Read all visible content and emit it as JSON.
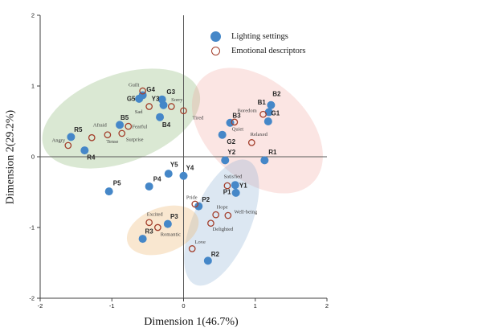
{
  "figure": {
    "background": "#ffffff"
  },
  "legend": {
    "items": [
      {
        "label": "Lighting settings",
        "marker": "filled-circle",
        "color": "#4587c8"
      },
      {
        "label": "Emotional descriptors",
        "marker": "open-circle",
        "color": "#a33f2c"
      }
    ]
  },
  "chart_data": {
    "type": "scatter",
    "title": "",
    "xlabel": "Dimension 1(46.7%)",
    "ylabel": "Dimension 2(29.2%)",
    "xlim": [
      -2,
      2
    ],
    "ylim": [
      -2,
      2
    ],
    "xticks": [
      -2,
      -1,
      0,
      1,
      2
    ],
    "yticks": [
      -2,
      -1,
      0,
      1,
      2
    ],
    "grid": false,
    "crosshair_at_origin": true,
    "legend_position": "upper-center",
    "colors": {
      "filled_point": "#4587c8",
      "open_point_stroke": "#a33f2c",
      "axis": "#404040",
      "crosshair": "#5a5a5a",
      "point_label": "#262626",
      "descriptor_label": "#3d3d3d"
    },
    "series": [
      {
        "name": "Lighting settings",
        "marker": "filled",
        "color": "#4587c8",
        "points": [
          {
            "id": "R5",
            "x": -1.57,
            "y": 0.28,
            "dx": 9,
            "dy": -9
          },
          {
            "id": "R4",
            "x": -1.38,
            "y": 0.09,
            "dx": 8,
            "dy": 9
          },
          {
            "id": "B5",
            "x": -0.89,
            "y": 0.45,
            "dx": 6,
            "dy": -9
          },
          {
            "id": "G5",
            "x": -0.62,
            "y": 0.82,
            "dx": -10,
            "dy": 0
          },
          {
            "id": "G4",
            "x": -0.57,
            "y": 0.87,
            "dx": 10,
            "dy": -7
          },
          {
            "id": "Y3",
            "x": -0.28,
            "y": 0.73,
            "dx": -10,
            "dy": -8
          },
          {
            "id": "G3",
            "x": -0.3,
            "y": 0.81,
            "dx": 11,
            "dy": -9
          },
          {
            "id": "B4",
            "x": -0.33,
            "y": 0.56,
            "dx": 8,
            "dy": 10
          },
          {
            "id": "B3",
            "x": 0.65,
            "y": 0.48,
            "dx": 8,
            "dy": -9
          },
          {
            "id": "G2",
            "x": 0.54,
            "y": 0.31,
            "dx": 11,
            "dy": 9
          },
          {
            "id": "Y2",
            "x": 0.58,
            "y": -0.05,
            "dx": 8,
            "dy": -10
          },
          {
            "id": "R1",
            "x": 1.13,
            "y": -0.05,
            "dx": 10,
            "dy": -10
          },
          {
            "id": "G1",
            "x": 1.18,
            "y": 0.5,
            "dx": 9,
            "dy": -10
          },
          {
            "id": "B1",
            "x": 1.19,
            "y": 0.63,
            "dx": -9,
            "dy": -12
          },
          {
            "id": "B2",
            "x": 1.22,
            "y": 0.73,
            "dx": 7,
            "dy": -14
          },
          {
            "id": "Y5",
            "x": -0.21,
            "y": -0.24,
            "dx": 7,
            "dy": -11
          },
          {
            "id": "Y4",
            "x": 0.0,
            "y": -0.27,
            "dx": 8,
            "dy": -10
          },
          {
            "id": "P5",
            "x": -1.04,
            "y": -0.49,
            "dx": 10,
            "dy": -10
          },
          {
            "id": "P4",
            "x": -0.48,
            "y": -0.42,
            "dx": 10,
            "dy": -9
          },
          {
            "id": "P3",
            "x": -0.22,
            "y": -0.95,
            "dx": 8,
            "dy": -9
          },
          {
            "id": "R3",
            "x": -0.57,
            "y": -1.16,
            "dx": 8,
            "dy": -9
          },
          {
            "id": "P2",
            "x": 0.21,
            "y": -0.7,
            "dx": 9,
            "dy": -8
          },
          {
            "id": "P1",
            "x": 0.73,
            "y": -0.51,
            "dx": -11,
            "dy": -1
          },
          {
            "id": "Y1",
            "x": 0.72,
            "y": -0.4,
            "dx": 10,
            "dy": 1
          },
          {
            "id": "R2",
            "x": 0.34,
            "y": -1.47,
            "dx": 9,
            "dy": -8
          }
        ]
      },
      {
        "name": "Emotional descriptors",
        "marker": "open",
        "color": "#a33f2c",
        "points": [
          {
            "id": "Angry",
            "x": -1.61,
            "y": 0.16,
            "dx": -12,
            "dy": -6
          },
          {
            "id": "Afraid",
            "x": -1.28,
            "y": 0.27,
            "dx": 10,
            "dy": -15
          },
          {
            "id": "Tense",
            "x": -1.06,
            "y": 0.31,
            "dx": 6,
            "dy": 9
          },
          {
            "id": "Surprise",
            "x": -0.86,
            "y": 0.33,
            "dx": 16,
            "dy": 8
          },
          {
            "id": "Fearful",
            "x": -0.77,
            "y": 0.43,
            "dx": 14,
            "dy": 1
          },
          {
            "id": "Sad",
            "x": -0.48,
            "y": 0.71,
            "dx": -13,
            "dy": 7
          },
          {
            "id": "Guilt",
            "x": -0.57,
            "y": 0.93,
            "dx": -11,
            "dy": -7
          },
          {
            "id": "Sorry",
            "x": -0.17,
            "y": 0.71,
            "dx": 7,
            "dy": -8
          },
          {
            "id": "Tired",
            "x": 0.0,
            "y": 0.65,
            "dx": 18,
            "dy": 9
          },
          {
            "id": "Boredom",
            "x": 1.11,
            "y": 0.6,
            "dx": -20,
            "dy": -4
          },
          {
            "id": "Quiet",
            "x": 0.71,
            "y": 0.49,
            "dx": 4,
            "dy": 9
          },
          {
            "id": "Relaxed",
            "x": 0.95,
            "y": 0.2,
            "dx": 9,
            "dy": -10
          },
          {
            "id": "Satisfied",
            "x": 0.61,
            "y": -0.41,
            "dx": 7,
            "dy": -11
          },
          {
            "id": "Pride",
            "x": 0.16,
            "y": -0.67,
            "dx": -4,
            "dy": -8
          },
          {
            "id": "Hope",
            "x": 0.45,
            "y": -0.82,
            "dx": 8,
            "dy": -9
          },
          {
            "id": "Well-being",
            "x": 0.62,
            "y": -0.83,
            "dx": 22,
            "dy": -4
          },
          {
            "id": "Delighted",
            "x": 0.38,
            "y": -0.94,
            "dx": 15,
            "dy": 8
          },
          {
            "id": "Excited",
            "x": -0.48,
            "y": -0.93,
            "dx": 7,
            "dy": -10
          },
          {
            "id": "Romantic",
            "x": -0.36,
            "y": -1.0,
            "dx": 16,
            "dy": 9
          },
          {
            "id": "Love",
            "x": 0.12,
            "y": -1.3,
            "dx": 10,
            "dy": -8
          }
        ]
      }
    ],
    "clusters": [
      {
        "name": "negative-emotions-green",
        "fill": "rgba(150,190,130,0.35)",
        "cx": -0.87,
        "cy": 0.54,
        "rx": 1.15,
        "ry": 0.62,
        "rot_deg": -20
      },
      {
        "name": "calm-emotions-pink",
        "fill": "rgba(240,160,150,0.27)",
        "cx": 1.03,
        "cy": 0.37,
        "rx": 1.06,
        "ry": 0.7,
        "rot_deg": 42
      },
      {
        "name": "positive-emotions-blue",
        "fill": "rgba(130,170,210,0.28)",
        "cx": 0.53,
        "cy": -0.93,
        "rx": 0.94,
        "ry": 0.41,
        "rot_deg": 113
      },
      {
        "name": "excited-romantic-tan",
        "fill": "rgba(235,180,110,0.32)",
        "cx": -0.29,
        "cy": -1.04,
        "rx": 0.52,
        "ry": 0.32,
        "rot_deg": -20
      }
    ]
  }
}
